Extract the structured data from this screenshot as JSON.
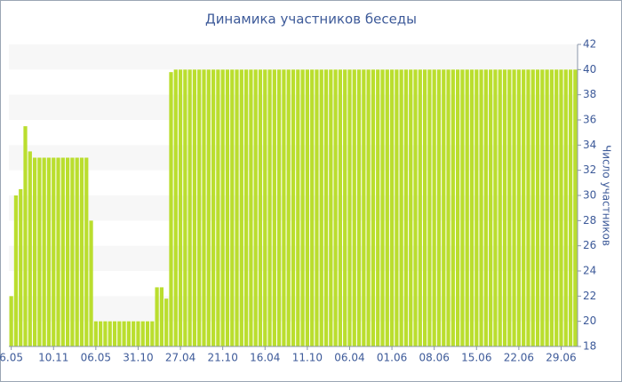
{
  "chart_data": {
    "type": "bar",
    "title": "Динамика участников беседы",
    "y_axis_label": "Число участников",
    "categories": [
      "6.05",
      null,
      null,
      null,
      null,
      null,
      null,
      null,
      null,
      "10.11",
      null,
      null,
      null,
      null,
      null,
      null,
      null,
      null,
      "06.05",
      null,
      null,
      null,
      null,
      null,
      null,
      null,
      null,
      "31.10",
      null,
      null,
      null,
      null,
      null,
      null,
      null,
      null,
      "27.04",
      null,
      null,
      null,
      null,
      null,
      null,
      null,
      null,
      "21.10",
      null,
      null,
      null,
      null,
      null,
      null,
      null,
      null,
      "16.04",
      null,
      null,
      null,
      null,
      null,
      null,
      null,
      null,
      "11.10",
      null,
      null,
      null,
      null,
      null,
      null,
      null,
      null,
      "06.04",
      null,
      null,
      null,
      null,
      null,
      null,
      null,
      null,
      "01.06",
      null,
      null,
      null,
      null,
      null,
      null,
      null,
      null,
      "08.06",
      null,
      null,
      null,
      null,
      null,
      null,
      null,
      null,
      "15.06",
      null,
      null,
      null,
      null,
      null,
      null,
      null,
      null,
      "22.06",
      null,
      null,
      null,
      null,
      null,
      null,
      null,
      null,
      "29.06",
      null,
      null,
      null
    ],
    "values": [
      22,
      30,
      30.5,
      35.5,
      33.5,
      33,
      33,
      33,
      33,
      33,
      33,
      33,
      33,
      33,
      33,
      33,
      33,
      28,
      20,
      20,
      20,
      20,
      20,
      20,
      20,
      20,
      20,
      20,
      20,
      20,
      20,
      22.7,
      22.7,
      21.8,
      39.8,
      40,
      40,
      40,
      40,
      40,
      40,
      40,
      40,
      40,
      40,
      40,
      40,
      40,
      40,
      40,
      40,
      40,
      40,
      40,
      40,
      40,
      40,
      40,
      40,
      40,
      40,
      40,
      40,
      40,
      40,
      40,
      40,
      40,
      40,
      40,
      40,
      40,
      40,
      40,
      40,
      40,
      40,
      40,
      40,
      40,
      40,
      40,
      40,
      40,
      40,
      40,
      40,
      40,
      40,
      40,
      40,
      40,
      40,
      40,
      40,
      40,
      40,
      40,
      40,
      40,
      40,
      40,
      40,
      40,
      40,
      40,
      40,
      40,
      40,
      40,
      40,
      40,
      40,
      40,
      40,
      40,
      40,
      40,
      40,
      40,
      40
    ],
    "color": "#bade2e",
    "ylim": [
      18,
      42
    ],
    "yticks": [
      18,
      20,
      22,
      24,
      26,
      28,
      30,
      32,
      34,
      36,
      38,
      40,
      42
    ],
    "grid": true,
    "y_axis_side": "right"
  }
}
